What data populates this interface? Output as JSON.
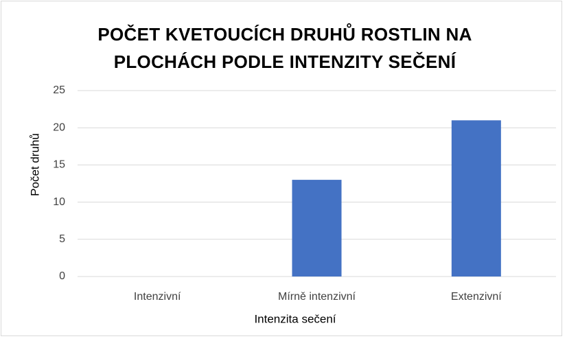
{
  "chart_data": {
    "type": "bar",
    "title": "POČET KVETOUCÍCH DRUHŮ ROSTLIN NA PLOCHÁCH PODLE INTENZITY SEČENÍ",
    "x_label": "Intenzita sečení",
    "y_label": "Počet druhů",
    "categories": [
      "Intenzivní",
      "Mírně intenzivní",
      "Extenzivní"
    ],
    "values": [
      0,
      13,
      21
    ],
    "color": "#4472c4",
    "ylim": [
      0,
      25
    ],
    "yticks": [
      0,
      5,
      10,
      15,
      20,
      25
    ],
    "grid": true
  }
}
